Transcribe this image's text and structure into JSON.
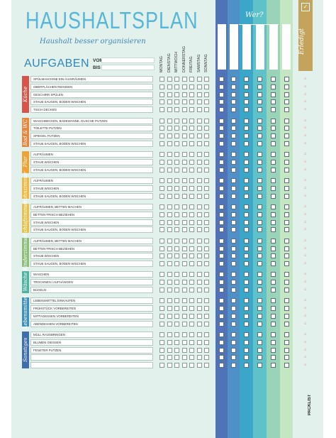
{
  "header": {
    "title": "HAUSHALTSPLAN",
    "subtitle": "Haushalt besser organisieren",
    "aufgaben_label": "AUFGABEN",
    "vom_label": "VOM",
    "bis_label": "BIS"
  },
  "days": [
    "MONTAG",
    "DIENSTAG",
    "MITTWOCH",
    "DONNERSTAG",
    "FREITAG",
    "SAMSTAG",
    "SONNTAG"
  ],
  "wer_label": "Wer?",
  "erledigt_label": "Erledigt",
  "brand": "PACKLIST",
  "colors": {
    "page_bg": "#e3f1ec",
    "title": "#58b7d8",
    "erledigt": "#c4a45c",
    "columns": [
      "#4f73b6",
      "#5090c8",
      "#3aa6c8",
      "#5fc2c9",
      "#9ad4b8",
      "#c4e6c2"
    ]
  },
  "categories": [
    {
      "label": "Küche",
      "color": "#d8544a",
      "tasks": [
        "SPÜLMASCHINE EIN-/AUSRÄUMEN",
        "OBERFLÄCHEN REINIGEN",
        "GESCHIRR SPÜLEN",
        "STAUB SAUGEN, BODEN WISCHEN",
        "TISCH DECKEN"
      ]
    },
    {
      "label": "Bad & WC",
      "color": "#e8873c",
      "tasks": [
        "WASCHBECKEN, BADEWANNE, DUSCHE PUTZEN",
        "TOILETTE PUTZEN",
        "SPIEGEL PUTZEN",
        "STAUB SAUGEN, BODEN WISCHEN"
      ]
    },
    {
      "label": "Flur",
      "color": "#f0a335",
      "tasks": [
        "AUFRÄUMEN",
        "STAUB WISCHEN",
        "STAUB SAUGEN, BODEN WISCHEN"
      ]
    },
    {
      "label": "Wohnzimmer",
      "color": "#f1b93f",
      "tasks": [
        "AUFRÄUMEN",
        "STAUB WISCHEN",
        "STAUB SAUGEN, BODEN WISCHEN"
      ]
    },
    {
      "label": "Schlafzimmer",
      "color": "#e6c24c",
      "tasks": [
        "AUFRÄUMEN, BETTEN MACHEN",
        "BETTEN FRISCH BEZIEHEN",
        "STAUB WISCHEN",
        "STAUB SAUGEN, BODEN WISCHEN"
      ]
    },
    {
      "label": "Kinderzimmer",
      "color": "#8cc07a",
      "tasks": [
        "AUFRÄUMEN, BETTEN MACHEN",
        "BETTEN FRISCH BEZIEHEN",
        "STAUB WISCHEN",
        "STAUB SAUGEN, BODEN WISCHEN"
      ]
    },
    {
      "label": "Wäsche",
      "color": "#4fb3a4",
      "tasks": [
        "WASCHEN",
        "TROCKNEN / AUFHÄNGEN",
        "BÜGELN"
      ]
    },
    {
      "label": "Lebensmittel",
      "color": "#3f91bd",
      "tasks": [
        "LEBENSMITTEL EINKAUFEN",
        "FRÜHSTÜCK VORBEREITEN",
        "MITTAGESSEN VORBEREITEN",
        "ABENDESSEN VORBEREITEN"
      ]
    },
    {
      "label": "Sonstiges",
      "color": "#3d6fae",
      "tasks": [
        "MÜLL RAUSBRINGEN",
        "BLUMEN GIESSEN",
        "FENSTER PUTZEN",
        "",
        ""
      ]
    }
  ]
}
